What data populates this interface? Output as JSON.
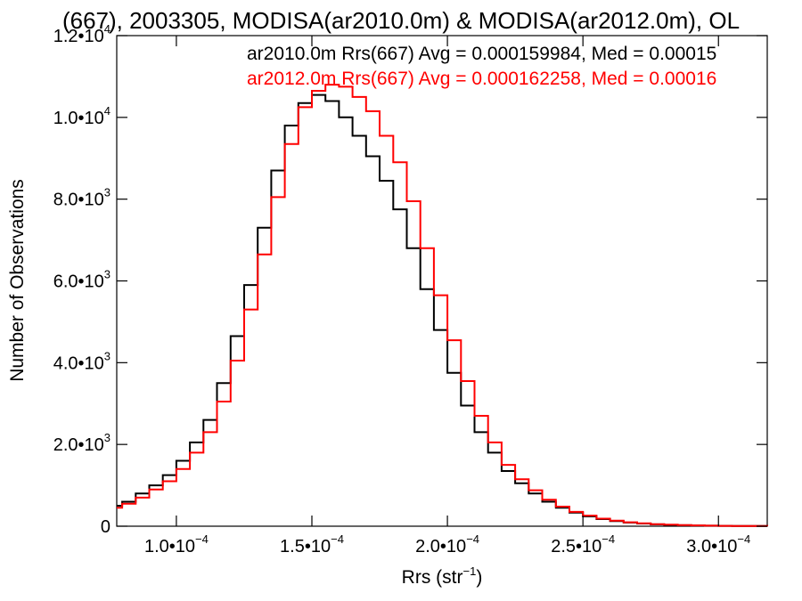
{
  "chart_data": {
    "type": "line",
    "title": "(667), 2003305, MODISA(ar2010.0m) & MODISA(ar2012.0m), OL",
    "xlabel": {
      "base": "Rrs (str",
      "sup": "−1",
      "close": ")"
    },
    "ylabel": "Number of Observations",
    "xlim": [
      7.8e-05,
      0.000318
    ],
    "ylim": [
      0,
      12000
    ],
    "grid": false,
    "legend_position": "top-right",
    "x_ticks": [
      {
        "value": 0.0001,
        "mantissa": "1.0•10",
        "exp": "−4"
      },
      {
        "value": 0.00015,
        "mantissa": "1.5•10",
        "exp": "−4"
      },
      {
        "value": 0.0002,
        "mantissa": "2.0•10",
        "exp": "−4"
      },
      {
        "value": 0.00025,
        "mantissa": "2.5•10",
        "exp": "−4"
      },
      {
        "value": 0.0003,
        "mantissa": "3.0•10",
        "exp": "−4"
      }
    ],
    "y_ticks": [
      {
        "value": 0,
        "mantissa": "0",
        "exp": ""
      },
      {
        "value": 2000,
        "mantissa": "2.0•10",
        "exp": "3"
      },
      {
        "value": 4000,
        "mantissa": "4.0•10",
        "exp": "3"
      },
      {
        "value": 6000,
        "mantissa": "6.0•10",
        "exp": "3"
      },
      {
        "value": 8000,
        "mantissa": "8.0•10",
        "exp": "3"
      },
      {
        "value": 10000,
        "mantissa": "1.0•10",
        "exp": "4"
      },
      {
        "value": 12000,
        "mantissa": "1.2•10",
        "exp": "4"
      }
    ],
    "series": [
      {
        "legend_text": "ar2010.0m Rrs(667) Avg = 0.000159984, Med = 0.00015",
        "color": "#000000",
        "x": [
          7.8e-05,
          8e-05,
          8.5e-05,
          9e-05,
          9.5e-05,
          0.0001,
          0.000105,
          0.00011,
          0.000115,
          0.00012,
          0.000125,
          0.00013,
          0.000135,
          0.00014,
          0.000145,
          0.00015,
          0.000155,
          0.00016,
          0.000165,
          0.00017,
          0.000175,
          0.00018,
          0.000185,
          0.00019,
          0.000195,
          0.0002,
          0.000205,
          0.00021,
          0.000215,
          0.00022,
          0.000225,
          0.00023,
          0.000235,
          0.00024,
          0.000245,
          0.00025,
          0.000255,
          0.00026,
          0.000265,
          0.00027,
          0.000275,
          0.00028,
          0.000285,
          0.00029,
          0.000295,
          0.0003,
          0.000305,
          0.00031,
          0.000318
        ],
        "y": [
          500,
          600,
          800,
          1000,
          1250,
          1600,
          2050,
          2600,
          3500,
          4650,
          5900,
          7300,
          8700,
          9800,
          10350,
          10550,
          10400,
          10000,
          9550,
          9050,
          8450,
          7750,
          6800,
          5800,
          4800,
          3750,
          2950,
          2300,
          1800,
          1350,
          1050,
          800,
          600,
          450,
          330,
          240,
          175,
          125,
          90,
          65,
          45,
          33,
          25,
          18,
          12,
          8,
          6,
          4,
          3
        ]
      },
      {
        "legend_text": "ar2012.0m Rrs(667) Avg = 0.000162258, Med = 0.00016",
        "color": "#ff0000",
        "x": [
          7.8e-05,
          8e-05,
          8.5e-05,
          9e-05,
          9.5e-05,
          0.0001,
          0.000105,
          0.00011,
          0.000115,
          0.00012,
          0.000125,
          0.00013,
          0.000135,
          0.00014,
          0.000145,
          0.00015,
          0.000155,
          0.00016,
          0.000165,
          0.00017,
          0.000175,
          0.00018,
          0.000185,
          0.00019,
          0.000195,
          0.0002,
          0.000205,
          0.00021,
          0.000215,
          0.00022,
          0.000225,
          0.00023,
          0.000235,
          0.00024,
          0.000245,
          0.00025,
          0.000255,
          0.00026,
          0.000265,
          0.00027,
          0.000275,
          0.00028,
          0.000285,
          0.00029,
          0.000295,
          0.0003,
          0.000305,
          0.00031,
          0.000318
        ],
        "y": [
          450,
          550,
          700,
          900,
          1100,
          1400,
          1800,
          2300,
          3050,
          4050,
          5300,
          6650,
          8050,
          9350,
          10250,
          10650,
          10800,
          10750,
          10500,
          10150,
          9550,
          8900,
          7950,
          6800,
          5650,
          4550,
          3550,
          2700,
          2050,
          1500,
          1150,
          880,
          650,
          480,
          350,
          260,
          185,
          135,
          95,
          70,
          50,
          36,
          27,
          19,
          13,
          9,
          6,
          4,
          3
        ]
      }
    ]
  }
}
